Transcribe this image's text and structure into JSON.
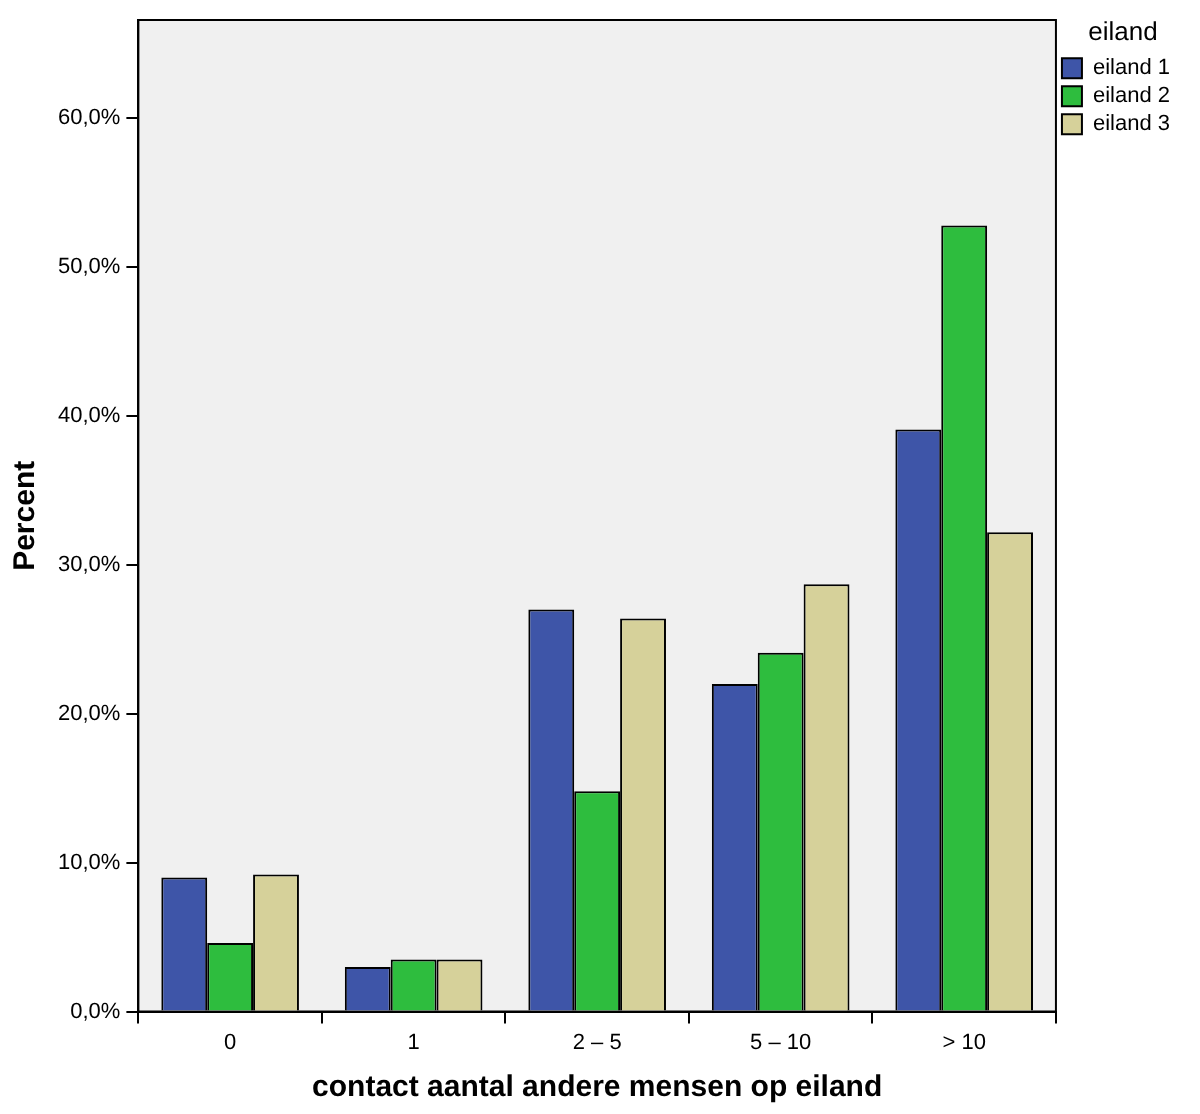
{
  "chart_data": {
    "type": "bar",
    "xlabel": "contact aantal andere mensen op eiland",
    "ylabel": "Percent",
    "legend_title": "eiland",
    "legend": "top right",
    "grid": false,
    "categories": [
      "0",
      "1",
      "2 – 5",
      "5 – 10",
      "> 10"
    ],
    "ylim": [
      0,
      66.6
    ],
    "yticks": [
      {
        "value": 0,
        "label": "0,0%"
      },
      {
        "value": 10,
        "label": "10,0%"
      },
      {
        "value": 20,
        "label": "20,0%"
      },
      {
        "value": 30,
        "label": "30,0%"
      },
      {
        "value": 40,
        "label": "40,0%"
      },
      {
        "value": 50,
        "label": "50,0%"
      },
      {
        "value": 60,
        "label": "60,0%"
      }
    ],
    "series": [
      {
        "name": "eiland 1",
        "color": "#3e55a8",
        "values": [
          9.0,
          3.0,
          27.0,
          22.0,
          39.1
        ]
      },
      {
        "name": "eiland 2",
        "color": "#2ebd3e",
        "values": [
          4.6,
          3.5,
          14.8,
          24.1,
          52.8
        ]
      },
      {
        "name": "eiland 3",
        "color": "#d6d19a",
        "values": [
          9.2,
          3.5,
          26.4,
          28.7,
          32.2
        ]
      }
    ]
  }
}
